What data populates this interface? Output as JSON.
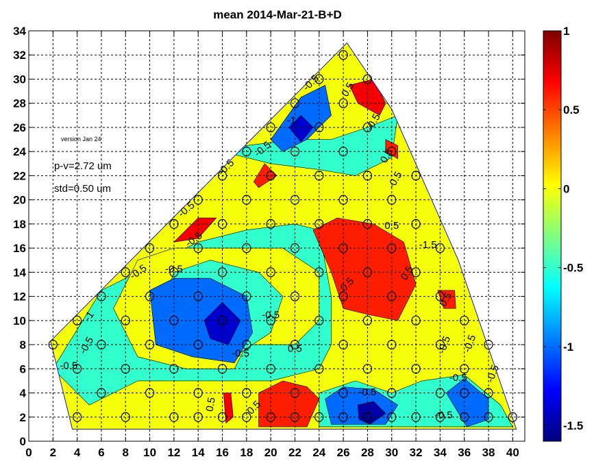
{
  "chart_data": {
    "type": "heatmap",
    "title": "mean 2014-Mar-21-B+D",
    "xlim": [
      0,
      41
    ],
    "ylim": [
      0,
      34
    ],
    "x_ticks": [
      0,
      2,
      4,
      6,
      8,
      10,
      12,
      14,
      16,
      18,
      20,
      22,
      24,
      26,
      28,
      30,
      32,
      34,
      36,
      38,
      40
    ],
    "y_ticks": [
      0,
      2,
      4,
      6,
      8,
      10,
      12,
      14,
      16,
      18,
      20,
      22,
      24,
      26,
      28,
      30,
      32,
      34
    ],
    "grid": true,
    "colorbar": {
      "min": -1.6,
      "max": 1.0,
      "ticks": [
        1,
        0.5,
        0,
        -0.5,
        -1,
        -1.5
      ],
      "tick_labels": [
        "1",
        "0.5",
        "0",
        "-0.5",
        "-1",
        "-1.5"
      ],
      "colormap": "jet"
    },
    "annotations": {
      "version": "version Jan 24",
      "pv": "p-v=2.72 um",
      "std": "std=0.50 um"
    },
    "boundary": [
      [
        1.8,
        8.3
      ],
      [
        26.3,
        33.0
      ],
      [
        30.0,
        27.5
      ],
      [
        35.5,
        15.0
      ],
      [
        40.3,
        1.0
      ],
      [
        3.6,
        1.0
      ]
    ],
    "regions": [
      {
        "level": -0.5,
        "points": [
          [
            2,
            6
          ],
          [
            6,
            12.5
          ],
          [
            14,
            16.5
          ],
          [
            18,
            17.5
          ],
          [
            22,
            18
          ],
          [
            24,
            17.5
          ],
          [
            25,
            12
          ],
          [
            25,
            8
          ],
          [
            24,
            6
          ],
          [
            20,
            5
          ],
          [
            15,
            5
          ],
          [
            9,
            5
          ],
          [
            5,
            3
          ],
          [
            3,
            5
          ]
        ]
      },
      {
        "level": 0.0,
        "points": [
          [
            9,
            15
          ],
          [
            12,
            16
          ],
          [
            16,
            16
          ],
          [
            21,
            16
          ],
          [
            24,
            14
          ],
          [
            24,
            10
          ],
          [
            22,
            8
          ],
          [
            18,
            8
          ],
          [
            17,
            6
          ],
          [
            13,
            6
          ],
          [
            9,
            7
          ],
          [
            7,
            11
          ]
        ]
      },
      {
        "level": -0.5,
        "points": [
          [
            12,
            14
          ],
          [
            15,
            15
          ],
          [
            19,
            14
          ],
          [
            21,
            12
          ],
          [
            20,
            9
          ],
          [
            17,
            7
          ],
          [
            13,
            8
          ],
          [
            11,
            11
          ]
        ]
      },
      {
        "level": -0.5,
        "points": [
          [
            16,
            24
          ],
          [
            20,
            23
          ],
          [
            24,
            22.5
          ],
          [
            27,
            22
          ],
          [
            30,
            23.5
          ],
          [
            30.5,
            27
          ],
          [
            28,
            26
          ],
          [
            25,
            25
          ],
          [
            22,
            25
          ],
          [
            18,
            24.5
          ]
        ]
      },
      {
        "level": -1.0,
        "points": [
          [
            10,
            12.5
          ],
          [
            12,
            13.5
          ],
          [
            15,
            13.5
          ],
          [
            18,
            12
          ],
          [
            18.5,
            9
          ],
          [
            17,
            6.5
          ],
          [
            13.5,
            7
          ],
          [
            10.5,
            8
          ]
        ]
      },
      {
        "level": -1.4,
        "points": [
          [
            14.5,
            10
          ],
          [
            16,
            11.5
          ],
          [
            17.5,
            10
          ],
          [
            16.5,
            8
          ],
          [
            15,
            8.5
          ]
        ]
      },
      {
        "level": -1.0,
        "points": [
          [
            20,
            25
          ],
          [
            22.5,
            28.5
          ],
          [
            24.5,
            29.5
          ],
          [
            25,
            27
          ],
          [
            23,
            25
          ],
          [
            21,
            24
          ]
        ]
      },
      {
        "level": -1.4,
        "points": [
          [
            21.5,
            26
          ],
          [
            22.5,
            27
          ],
          [
            23.5,
            26
          ],
          [
            22.5,
            24.8
          ]
        ]
      },
      {
        "level": 0.6,
        "points": [
          [
            23.5,
            17.5
          ],
          [
            25.5,
            18.5
          ],
          [
            28.5,
            18
          ],
          [
            31,
            16.5
          ],
          [
            32,
            13
          ],
          [
            30.5,
            10
          ],
          [
            28,
            10.5
          ],
          [
            26,
            11
          ],
          [
            25,
            14
          ]
        ]
      },
      {
        "level": 0.7,
        "points": [
          [
            26.5,
            29.5
          ],
          [
            28.5,
            30
          ],
          [
            29.5,
            28
          ],
          [
            29,
            27
          ],
          [
            27.2,
            28
          ]
        ]
      },
      {
        "level": 0.6,
        "points": [
          [
            29.5,
            25
          ],
          [
            30.5,
            24.5
          ],
          [
            30.5,
            23.4
          ],
          [
            29.5,
            24
          ]
        ]
      },
      {
        "level": 0.7,
        "points": [
          [
            12,
            16.5
          ],
          [
            14,
            18.5
          ],
          [
            15.5,
            18.5
          ],
          [
            14,
            16.8
          ]
        ]
      },
      {
        "level": 0.6,
        "points": [
          [
            18.6,
            21.5
          ],
          [
            19.5,
            23
          ],
          [
            20.5,
            22
          ],
          [
            19,
            21
          ]
        ]
      },
      {
        "level": 0.6,
        "points": [
          [
            19,
            4
          ],
          [
            21,
            5
          ],
          [
            23,
            4.5
          ],
          [
            24,
            3.5
          ],
          [
            23,
            1.2
          ],
          [
            19,
            1.2
          ]
        ]
      },
      {
        "level": 0.7,
        "points": [
          [
            16.1,
            4
          ],
          [
            16.7,
            4
          ],
          [
            16.9,
            2
          ],
          [
            16.3,
            1.5
          ]
        ]
      },
      {
        "level": 0.6,
        "points": [
          [
            33.8,
            12.5
          ],
          [
            35.2,
            12.5
          ],
          [
            35.3,
            11
          ],
          [
            34.3,
            11
          ]
        ]
      },
      {
        "level": -0.5,
        "points": [
          [
            24,
            4
          ],
          [
            27,
            5
          ],
          [
            30,
            4
          ],
          [
            32.5,
            5
          ],
          [
            36,
            5.5
          ],
          [
            39,
            3
          ],
          [
            40,
            1.2
          ],
          [
            24,
            1.2
          ]
        ]
      },
      {
        "level": -1.0,
        "points": [
          [
            24.5,
            3.5
          ],
          [
            26,
            4.5
          ],
          [
            28.5,
            4.3
          ],
          [
            30.5,
            3
          ],
          [
            29.5,
            1.4
          ],
          [
            25,
            1.4
          ]
        ]
      },
      {
        "level": -1.0,
        "points": [
          [
            34.5,
            4
          ],
          [
            36,
            5.2
          ],
          [
            38,
            3.5
          ],
          [
            38,
            1.8
          ],
          [
            36.2,
            1.2
          ]
        ]
      },
      {
        "level": -1.5,
        "points": [
          [
            27.2,
            3
          ],
          [
            28.5,
            3.3
          ],
          [
            29.5,
            2.3
          ],
          [
            28.2,
            1.4
          ],
          [
            27.3,
            1.8
          ]
        ]
      }
    ],
    "contour_labels": [
      {
        "text": "-0.5",
        "x": 5.0,
        "y": 7.8,
        "rot": -60
      },
      {
        "text": "-1",
        "x": 5.2,
        "y": 10.2,
        "rot": -55
      },
      {
        "text": "-0.5",
        "x": 9.2,
        "y": 13.8,
        "rot": -35
      },
      {
        "text": "-0.5",
        "x": 13.8,
        "y": 16.5,
        "rot": -35
      },
      {
        "text": "-0.5",
        "x": 13.2,
        "y": 19.0,
        "rot": -40
      },
      {
        "text": "-0.5",
        "x": 16.5,
        "y": 22.5,
        "rot": -45
      },
      {
        "text": "-0.5",
        "x": 19.5,
        "y": 24.0,
        "rot": -40
      },
      {
        "text": "-1",
        "x": 21.7,
        "y": 26.3,
        "rot": 0
      },
      {
        "text": "-0.5",
        "x": 23.5,
        "y": 29.5,
        "rot": -45
      },
      {
        "text": "0.5",
        "x": 26.6,
        "y": 29.0,
        "rot": -60
      },
      {
        "text": "-0.5",
        "x": 28.7,
        "y": 26.3,
        "rot": -60
      },
      {
        "text": "0.5",
        "x": 29.8,
        "y": 23.5,
        "rot": -60
      },
      {
        "text": "-0.5",
        "x": 30.5,
        "y": 21.5,
        "rot": -60
      },
      {
        "text": "-0.5",
        "x": 12.0,
        "y": 14.0,
        "rot": 0
      },
      {
        "text": "-0.5",
        "x": 17.5,
        "y": 7.0,
        "rot": 0
      },
      {
        "text": "0.5",
        "x": 30.0,
        "y": 17.6,
        "rot": 0
      },
      {
        "text": "-1.5",
        "x": 33.0,
        "y": 16.0,
        "rot": 0
      },
      {
        "text": "0.5",
        "x": 31.5,
        "y": 13.8,
        "rot": -60
      },
      {
        "text": "0.5",
        "x": 26.5,
        "y": 12.8,
        "rot": -45
      },
      {
        "text": "0.5",
        "x": 34.7,
        "y": 11.6,
        "rot": -60
      },
      {
        "text": "-0.5",
        "x": 34.6,
        "y": 7.9,
        "rot": -70
      },
      {
        "text": "-0.5",
        "x": 36.7,
        "y": 8.0,
        "rot": -70
      },
      {
        "text": "-0.5",
        "x": 38.6,
        "y": 5.5,
        "rot": -70
      },
      {
        "text": "0.5",
        "x": 22.0,
        "y": 7.4,
        "rot": 0
      },
      {
        "text": "-0.5",
        "x": 28.0,
        "y": 3.8,
        "rot": 0
      },
      {
        "text": "-0.5",
        "x": 35.5,
        "y": 5.0,
        "rot": 0
      },
      {
        "text": "-0.5",
        "x": 34.3,
        "y": 1.9,
        "rot": 0
      },
      {
        "text": "0.5",
        "x": 18.8,
        "y": 2.6,
        "rot": -45
      },
      {
        "text": "0.5",
        "x": 15.3,
        "y": 3.0,
        "rot": -80
      },
      {
        "text": "-0.5",
        "x": 3.3,
        "y": 6.0,
        "rot": 0
      },
      {
        "text": "-0.5",
        "x": 20.0,
        "y": 10.2,
        "rot": 0
      }
    ],
    "markers": [
      [
        2,
        8
      ],
      [
        4,
        10
      ],
      [
        4,
        6
      ],
      [
        4,
        2
      ],
      [
        6,
        12
      ],
      [
        6,
        8
      ],
      [
        6,
        4
      ],
      [
        8,
        14
      ],
      [
        8,
        10
      ],
      [
        8,
        6
      ],
      [
        8,
        2
      ],
      [
        10,
        16
      ],
      [
        10,
        12
      ],
      [
        10,
        8
      ],
      [
        10,
        4
      ],
      [
        12,
        18
      ],
      [
        12,
        14
      ],
      [
        12,
        10
      ],
      [
        12,
        6
      ],
      [
        12,
        2
      ],
      [
        14,
        20
      ],
      [
        14,
        16
      ],
      [
        14,
        12
      ],
      [
        14,
        8
      ],
      [
        14,
        4
      ],
      [
        14,
        2
      ],
      [
        16,
        22
      ],
      [
        16,
        18
      ],
      [
        16,
        14
      ],
      [
        16,
        10
      ],
      [
        16,
        6
      ],
      [
        16,
        2
      ],
      [
        18,
        24
      ],
      [
        18,
        20
      ],
      [
        18,
        16
      ],
      [
        18,
        12
      ],
      [
        18,
        8
      ],
      [
        18,
        4
      ],
      [
        18,
        2
      ],
      [
        20,
        26
      ],
      [
        20,
        22
      ],
      [
        20,
        18
      ],
      [
        20,
        14
      ],
      [
        20,
        10
      ],
      [
        20,
        6
      ],
      [
        20,
        2
      ],
      [
        22,
        28
      ],
      [
        22,
        24
      ],
      [
        22,
        20
      ],
      [
        22,
        16
      ],
      [
        22,
        12
      ],
      [
        22,
        8
      ],
      [
        22,
        4
      ],
      [
        22,
        2
      ],
      [
        24,
        30
      ],
      [
        24,
        26
      ],
      [
        24,
        22
      ],
      [
        24,
        18
      ],
      [
        24,
        14
      ],
      [
        24,
        10
      ],
      [
        24,
        6
      ],
      [
        24,
        2
      ],
      [
        26,
        32
      ],
      [
        26,
        28
      ],
      [
        26,
        24
      ],
      [
        26,
        20
      ],
      [
        26,
        16
      ],
      [
        26,
        12
      ],
      [
        26,
        8
      ],
      [
        26,
        4
      ],
      [
        26,
        2
      ],
      [
        28,
        30
      ],
      [
        28,
        26
      ],
      [
        28,
        22
      ],
      [
        28,
        18
      ],
      [
        28,
        14
      ],
      [
        28,
        10
      ],
      [
        28,
        6
      ],
      [
        28,
        2
      ],
      [
        30,
        24
      ],
      [
        30,
        20
      ],
      [
        30,
        16
      ],
      [
        30,
        12
      ],
      [
        30,
        8
      ],
      [
        30,
        4
      ],
      [
        30,
        2
      ],
      [
        32,
        22
      ],
      [
        32,
        18
      ],
      [
        32,
        14
      ],
      [
        32,
        10
      ],
      [
        32,
        6
      ],
      [
        32,
        2
      ],
      [
        34,
        16
      ],
      [
        34,
        12
      ],
      [
        34,
        8
      ],
      [
        34,
        4
      ],
      [
        34,
        2
      ],
      [
        36,
        10
      ],
      [
        36,
        6
      ],
      [
        36,
        4
      ],
      [
        36,
        2
      ],
      [
        38,
        8
      ],
      [
        38,
        4
      ],
      [
        38,
        2
      ],
      [
        40,
        2
      ]
    ]
  }
}
